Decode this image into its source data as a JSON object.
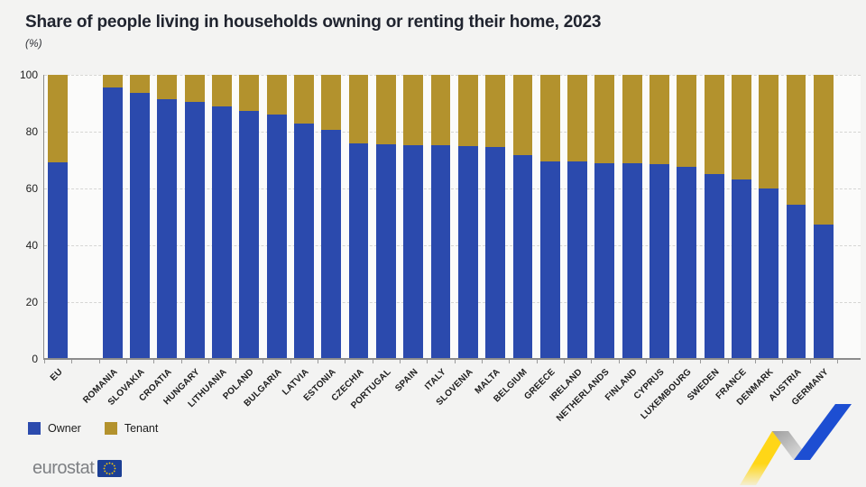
{
  "header": {
    "title": "Share of people living in households owning or renting their home, 2023",
    "subtitle": "(%)"
  },
  "chart_data": {
    "type": "bar",
    "stacked": true,
    "title": "Share of people living in households owning or renting their home, 2023",
    "unit": "(%)",
    "xlabel": "",
    "ylabel": "(%)",
    "ylim": [
      0,
      100
    ],
    "yticks": [
      0,
      20,
      40,
      60,
      80,
      100
    ],
    "grid": "dashed-horizontal",
    "legend_position": "bottom-left",
    "gap_after_first_category": true,
    "categories": [
      "EU",
      "ROMANIA",
      "SLOVAKIA",
      "CROATIA",
      "HUNGARY",
      "LITHUANIA",
      "POLAND",
      "BULGARIA",
      "LATVIA",
      "ESTONIA",
      "CZECHIA",
      "PORTUGAL",
      "SPAIN",
      "ITALY",
      "SLOVENIA",
      "MALTA",
      "BELGIUM",
      "GREECE",
      "IRELAND",
      "NETHERLANDS",
      "FINLAND",
      "CYPRUS",
      "LUXEMBOURG",
      "SWEDEN",
      "FRANCE",
      "DENMARK",
      "AUSTRIA",
      "GERMANY"
    ],
    "series": [
      {
        "name": "Owner",
        "color": "#2b4aad",
        "values": [
          69.2,
          95.6,
          93.7,
          91.3,
          90.5,
          88.9,
          87.3,
          86.0,
          82.9,
          80.6,
          75.9,
          75.7,
          75.2,
          75.2,
          74.9,
          74.6,
          71.7,
          69.5,
          69.4,
          68.9,
          68.9,
          68.7,
          67.6,
          65.0,
          63.1,
          59.9,
          54.2,
          47.3
        ]
      },
      {
        "name": "Tenant",
        "color": "#b3922d",
        "values": [
          30.8,
          4.4,
          6.3,
          8.7,
          9.5,
          11.1,
          12.7,
          14.0,
          17.1,
          19.4,
          24.1,
          24.3,
          24.8,
          24.8,
          25.1,
          25.4,
          28.3,
          30.5,
          30.6,
          31.1,
          31.1,
          31.3,
          32.4,
          35.0,
          36.9,
          40.1,
          45.8,
          52.7
        ]
      }
    ]
  },
  "legend": {
    "items": [
      {
        "label": "Owner",
        "color": "#2b4aad"
      },
      {
        "label": "Tenant",
        "color": "#b3922d"
      }
    ]
  },
  "footer": {
    "logo_text": "eurostat"
  },
  "colors": {
    "background": "#f3f3f2",
    "plot_background": "#fbfbfa",
    "title_text": "#20242f",
    "axis_line": "#8c8c8c",
    "gridline": "#d6d6d4",
    "ribbon_yellow": "#ffd617",
    "ribbon_gray": "#b5b5b5",
    "ribbon_blue": "#1d4ed2",
    "logo_text_gray": "#7e8084",
    "flag_blue": "#1c3f94",
    "flag_star_yellow": "#ffcc00"
  }
}
